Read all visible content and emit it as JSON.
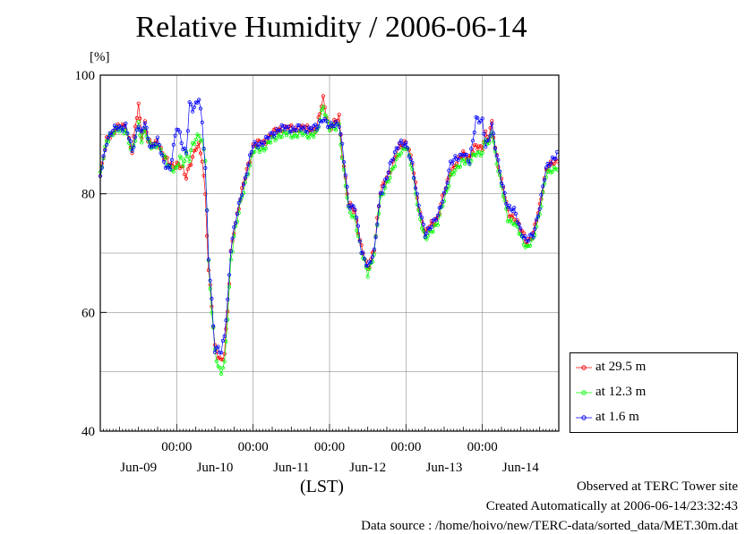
{
  "chart_data": {
    "type": "line",
    "title": "Relative Humidity / 2006-06-14",
    "ylabel": "[%]",
    "xlabel": "(LST)",
    "ylim": [
      40,
      100
    ],
    "xlim": [
      0,
      144
    ],
    "x_unit": "hours since Jun-09 00:00 (LST)",
    "yticks": [
      40,
      60,
      80,
      100
    ],
    "xticks": [
      {
        "hour": 24,
        "label": "00:00",
        "day": "Jun-10"
      },
      {
        "hour": 48,
        "label": "00:00",
        "day": "Jun-11"
      },
      {
        "hour": 72,
        "label": "00:00",
        "day": "Jun-12"
      },
      {
        "hour": 96,
        "label": "00:00",
        "day": "Jun-13"
      },
      {
        "hour": 120,
        "label": "00:00",
        "day": "Jun-14"
      }
    ],
    "day_labels": [
      {
        "hour": 12,
        "label": "Jun-09"
      },
      {
        "hour": 36,
        "label": "Jun-10"
      },
      {
        "hour": 60,
        "label": "Jun-11"
      },
      {
        "hour": 84,
        "label": "Jun-12"
      },
      {
        "hour": 108,
        "label": "Jun-13"
      },
      {
        "hour": 132,
        "label": "Jun-14"
      }
    ],
    "grid": true,
    "legend_position": "outside-right-bottom",
    "series": [
      {
        "name": "at 29.5 m",
        "color": "#ff0000",
        "x": [
          0,
          2,
          3,
          5,
          8,
          10,
          12,
          13,
          14,
          15,
          16,
          18,
          20,
          22,
          24,
          25,
          26,
          27,
          28,
          29,
          30,
          31,
          32,
          33,
          34,
          35,
          36,
          37,
          38,
          39,
          40,
          41,
          42,
          44,
          46,
          48,
          52,
          56,
          60,
          64,
          68,
          70,
          72,
          74,
          75,
          76,
          78,
          80,
          82,
          84,
          86,
          88,
          90,
          92,
          94,
          96,
          98,
          100,
          102,
          104,
          106,
          108,
          110,
          112,
          114,
          116,
          118,
          120,
          121,
          122,
          123,
          124,
          126,
          128,
          130,
          132,
          134,
          136,
          138,
          140,
          142,
          144
        ],
        "y": [
          83,
          89,
          90,
          91,
          91.5,
          87,
          95,
          90,
          92,
          89,
          88,
          89,
          86,
          85,
          85,
          84.5,
          84,
          83,
          85,
          86,
          87.5,
          88,
          86,
          80,
          67,
          61,
          54,
          53,
          52,
          53,
          60,
          70,
          74,
          79,
          84,
          88,
          89,
          91,
          91,
          91,
          91,
          96,
          91,
          92,
          93,
          87,
          78,
          77,
          71,
          67,
          71,
          80,
          83,
          85,
          88,
          89,
          85,
          78,
          73,
          75,
          76,
          80,
          84,
          85,
          87,
          86,
          88,
          88,
          90,
          89,
          92,
          88,
          82,
          77,
          76,
          74,
          72,
          73,
          78,
          84,
          85,
          86
        ]
      },
      {
        "name": "at 12.3 m",
        "color": "#00ff00",
        "x": [
          0,
          2,
          3,
          5,
          8,
          10,
          12,
          13,
          14,
          15,
          16,
          18,
          20,
          22,
          24,
          25,
          26,
          27,
          28,
          29,
          30,
          31,
          32,
          33,
          34,
          35,
          36,
          37,
          38,
          39,
          40,
          41,
          42,
          44,
          46,
          48,
          52,
          56,
          60,
          64,
          68,
          70,
          72,
          74,
          75,
          76,
          78,
          80,
          82,
          84,
          86,
          88,
          90,
          92,
          94,
          96,
          98,
          100,
          102,
          104,
          106,
          108,
          110,
          112,
          114,
          116,
          118,
          120,
          121,
          122,
          123,
          124,
          126,
          128,
          130,
          132,
          134,
          136,
          138,
          140,
          142,
          144
        ],
        "y": [
          83,
          89,
          90,
          90.5,
          91,
          86.5,
          92,
          89,
          91,
          88.5,
          88,
          88.5,
          86,
          84.5,
          84,
          86,
          85,
          87,
          86,
          88,
          89,
          90,
          89,
          86,
          68,
          60,
          54,
          51,
          50,
          51,
          59,
          69,
          73,
          78,
          83,
          87,
          88,
          90,
          90,
          90,
          90,
          95,
          91,
          91,
          92,
          86,
          77,
          76,
          70,
          66.5,
          70,
          79,
          82,
          84,
          87,
          88,
          84,
          77,
          72,
          74,
          75,
          79,
          83,
          84,
          86,
          85,
          87,
          87,
          89,
          88,
          91,
          87,
          81,
          76,
          75,
          73,
          71,
          72,
          77,
          83,
          84,
          85
        ]
      },
      {
        "name": "at 1.6 m",
        "color": "#0000ff",
        "x": [
          0,
          2,
          3,
          5,
          8,
          10,
          12,
          13,
          14,
          15,
          16,
          18,
          20,
          22,
          24,
          25,
          26,
          27,
          28,
          29,
          30,
          31,
          32,
          33,
          34,
          35,
          36,
          37,
          38,
          39,
          40,
          41,
          42,
          44,
          46,
          48,
          52,
          56,
          60,
          64,
          68,
          70,
          72,
          74,
          75,
          76,
          78,
          80,
          82,
          84,
          86,
          88,
          90,
          92,
          94,
          96,
          98,
          100,
          102,
          104,
          106,
          108,
          110,
          112,
          114,
          116,
          118,
          120,
          121,
          122,
          123,
          124,
          126,
          128,
          130,
          132,
          134,
          136,
          138,
          140,
          142,
          144
        ],
        "y": [
          83,
          89,
          90,
          91,
          91.5,
          87,
          92,
          90,
          92,
          89,
          88,
          89,
          85,
          84.5,
          91,
          90,
          88,
          87,
          95,
          94,
          95,
          96.5,
          92,
          84,
          69,
          62,
          54,
          54,
          53,
          56,
          62,
          71,
          74,
          79,
          84,
          88,
          89,
          91,
          91,
          91,
          91,
          93,
          91,
          92,
          92,
          88,
          78,
          78,
          70,
          68,
          70,
          80,
          83,
          86,
          89,
          88,
          85,
          78,
          73,
          75,
          76,
          80,
          85,
          86,
          87,
          85,
          93,
          92,
          88,
          89,
          92,
          88,
          82,
          78,
          77,
          74,
          72,
          73,
          78,
          84,
          86,
          87
        ]
      }
    ]
  },
  "footer": {
    "observed": "Observed at TERC Tower site",
    "created": "Created Automatically at 2006-06-14/23:32:43",
    "source": "Data source : /home/hoivo/new/TERC-data/sorted_data/MET.30m.dat"
  }
}
